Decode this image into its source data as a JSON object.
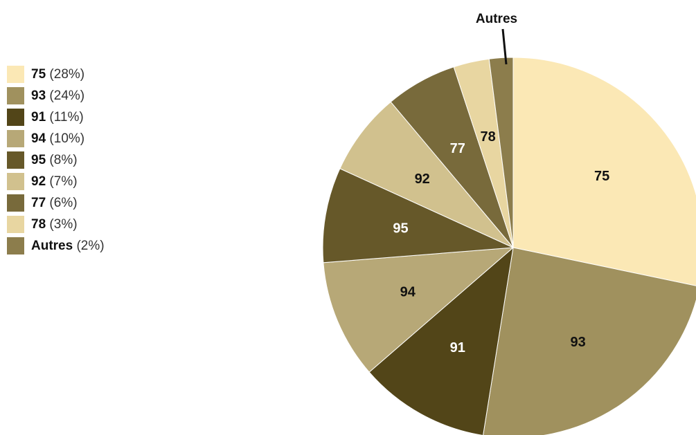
{
  "chart_data": {
    "type": "pie",
    "title": "",
    "slices": [
      {
        "label": "75",
        "percent": 28,
        "color": "#fbe8b5",
        "label_color": "#111111"
      },
      {
        "label": "93",
        "percent": 24,
        "color": "#a0915e",
        "label_color": "#111111"
      },
      {
        "label": "91",
        "percent": 11,
        "color": "#524518",
        "label_color": "#ffffff"
      },
      {
        "label": "94",
        "percent": 10,
        "color": "#b7a877",
        "label_color": "#111111"
      },
      {
        "label": "95",
        "percent": 8,
        "color": "#665829",
        "label_color": "#ffffff"
      },
      {
        "label": "92",
        "percent": 7,
        "color": "#d1c18e",
        "label_color": "#111111"
      },
      {
        "label": "77",
        "percent": 6,
        "color": "#786a3b",
        "label_color": "#ffffff"
      },
      {
        "label": "78",
        "percent": 3,
        "color": "#e8d6a1",
        "label_color": "#111111"
      },
      {
        "label": "Autres",
        "percent": 2,
        "color": "#8c7d4c",
        "label_color": "#111111"
      }
    ],
    "legend": [
      {
        "name": "75",
        "pct": "(28%)"
      },
      {
        "name": "93",
        "pct": "(24%)"
      },
      {
        "name": "91",
        "pct": "(11%)"
      },
      {
        "name": "94",
        "pct": "(10%)"
      },
      {
        "name": "95",
        "pct": "(8%)"
      },
      {
        "name": "92",
        "pct": "(7%)"
      },
      {
        "name": "77",
        "pct": "(6%)"
      },
      {
        "name": "78",
        "pct": "(3%)"
      },
      {
        "name": "Autres",
        "pct": "(2%)"
      }
    ],
    "legend_position": "left",
    "outside_label": "Autres"
  }
}
